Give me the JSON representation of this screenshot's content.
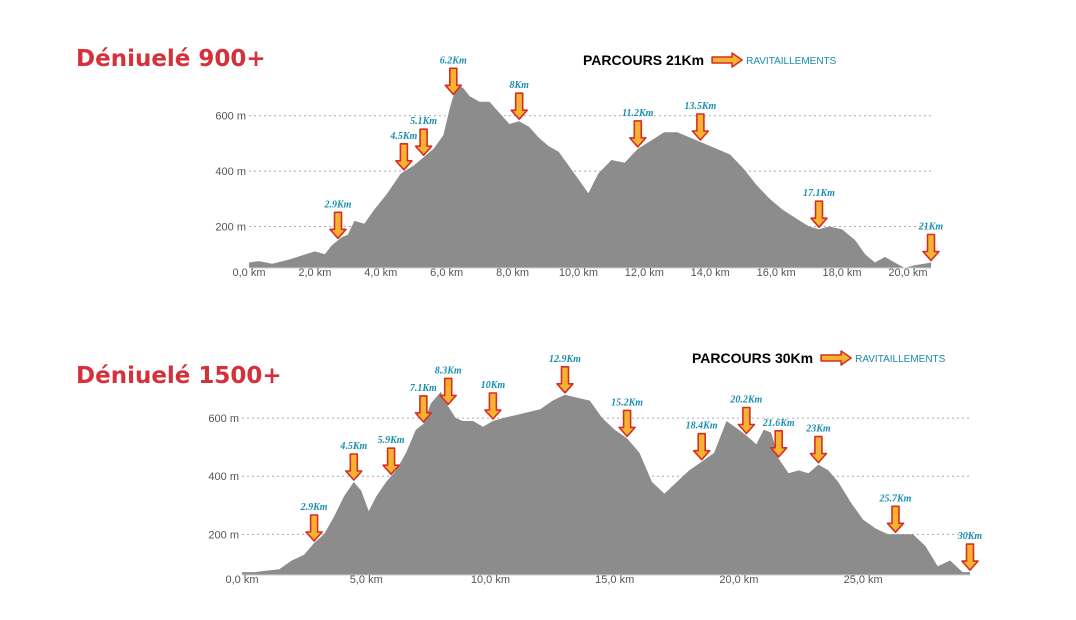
{
  "chart_data": [
    {
      "type": "area",
      "title": "Déniuelé 900+",
      "course": "PARCOURS 21Km",
      "legend_label": "RAVITAILLEMENTS",
      "xlim": [
        0,
        20.7
      ],
      "ylim": [
        50,
        700
      ],
      "yticks": [
        200,
        400,
        600
      ],
      "ytick_labels": [
        "200 m",
        "400 m",
        "600 m"
      ],
      "xticks": [
        0,
        2,
        4,
        6,
        8,
        10,
        12,
        14,
        16,
        18,
        20
      ],
      "xtick_labels": [
        "0,0 km",
        "2,0 km",
        "4,0 km",
        "6,0 km",
        "8,0 km",
        "10,0 km",
        "12,0 km",
        "14,0 km",
        "16,0 km",
        "18,0 km",
        "20,0 km"
      ],
      "grid": true,
      "x": [
        0,
        0.3,
        0.7,
        1.2,
        1.6,
        2.0,
        2.3,
        2.5,
        2.8,
        3.0,
        3.2,
        3.5,
        3.8,
        4.2,
        4.6,
        5.0,
        5.3,
        5.6,
        5.9,
        6.1,
        6.3,
        6.5,
        6.7,
        7.0,
        7.3,
        7.6,
        7.9,
        8.2,
        8.5,
        8.8,
        9.1,
        9.4,
        9.7,
        10.0,
        10.3,
        10.6,
        11.0,
        11.4,
        11.8,
        12.2,
        12.6,
        13.0,
        13.4,
        13.8,
        14.2,
        14.6,
        15.0,
        15.4,
        15.8,
        16.2,
        16.6,
        17.0,
        17.3,
        17.6,
        18.0,
        18.4,
        18.7,
        19.0,
        19.3,
        19.6,
        19.9,
        20.2,
        20.5,
        20.7
      ],
      "y": [
        70,
        75,
        65,
        80,
        95,
        110,
        100,
        130,
        160,
        170,
        220,
        210,
        260,
        320,
        390,
        420,
        450,
        480,
        530,
        630,
        710,
        700,
        670,
        650,
        650,
        610,
        570,
        580,
        560,
        520,
        490,
        470,
        420,
        370,
        320,
        390,
        440,
        430,
        480,
        510,
        540,
        540,
        520,
        500,
        480,
        460,
        410,
        350,
        300,
        260,
        230,
        200,
        190,
        200,
        190,
        150,
        100,
        70,
        90,
        70,
        50,
        60,
        65,
        70
      ],
      "markers": [
        {
          "label": "2.9Km",
          "x": 2.7
        },
        {
          "label": "4.5Km",
          "x": 4.7
        },
        {
          "label": "5.1Km",
          "x": 5.3
        },
        {
          "label": "6.2Km",
          "x": 6.2
        },
        {
          "label": "8Km",
          "x": 8.2
        },
        {
          "label": "11.2Km",
          "x": 11.8
        },
        {
          "label": "13.5Km",
          "x": 13.7
        },
        {
          "label": "17.1Km",
          "x": 17.3
        },
        {
          "label": "21Km",
          "x": 20.7
        }
      ]
    },
    {
      "type": "area",
      "title": "Déniuelé 1500+",
      "course": "PARCOURS 30Km",
      "legend_label": "RAVITAILLEMENTS",
      "xlim": [
        0,
        29.3
      ],
      "ylim": [
        60,
        700
      ],
      "yticks": [
        200,
        400,
        600
      ],
      "ytick_labels": [
        "200 m",
        "400 m",
        "600 m"
      ],
      "xticks": [
        0,
        5,
        10,
        15,
        20,
        25
      ],
      "xtick_labels": [
        "0,0 km",
        "5,0 km",
        "10,0 km",
        "15,0 km",
        "20,0 km",
        "25,0 km"
      ],
      "grid": true,
      "x": [
        0,
        0.5,
        1.0,
        1.5,
        2.0,
        2.5,
        2.9,
        3.3,
        3.7,
        4.1,
        4.5,
        4.8,
        5.1,
        5.4,
        5.8,
        6.2,
        6.6,
        7.0,
        7.3,
        7.6,
        8.0,
        8.3,
        8.6,
        8.9,
        9.3,
        9.7,
        10.1,
        10.5,
        11.0,
        11.5,
        12.0,
        12.5,
        13.0,
        13.5,
        14.0,
        14.5,
        15.0,
        15.5,
        16.0,
        16.5,
        17.0,
        17.5,
        18.0,
        18.5,
        19.0,
        19.5,
        20.0,
        20.3,
        20.7,
        21.0,
        21.3,
        21.6,
        22.0,
        22.4,
        22.8,
        23.2,
        23.6,
        24.0,
        24.5,
        25.0,
        25.5,
        26.0,
        26.5,
        27.0,
        27.5,
        28.0,
        28.5,
        29.0,
        29.3
      ],
      "y": [
        70,
        70,
        75,
        80,
        110,
        130,
        170,
        200,
        260,
        330,
        380,
        350,
        280,
        330,
        380,
        420,
        480,
        560,
        580,
        650,
        690,
        640,
        600,
        590,
        590,
        570,
        590,
        600,
        610,
        620,
        630,
        660,
        680,
        670,
        660,
        600,
        560,
        530,
        480,
        380,
        340,
        380,
        420,
        450,
        480,
        590,
        560,
        540,
        510,
        560,
        550,
        460,
        410,
        420,
        410,
        440,
        420,
        380,
        310,
        250,
        220,
        200,
        200,
        200,
        160,
        90,
        110,
        70,
        70
      ],
      "markers": [
        {
          "label": "2.9Km",
          "x": 2.9
        },
        {
          "label": "4.5Km",
          "x": 4.5
        },
        {
          "label": "5.9Km",
          "x": 6.0
        },
        {
          "label": "7.1Km",
          "x": 7.3
        },
        {
          "label": "8.3Km",
          "x": 8.3
        },
        {
          "label": "10Km",
          "x": 10.1
        },
        {
          "label": "12.9Km",
          "x": 13.0
        },
        {
          "label": "15.2Km",
          "x": 15.5
        },
        {
          "label": "18.4Km",
          "x": 18.5
        },
        {
          "label": "20.2Km",
          "x": 20.3
        },
        {
          "label": "21.6Km",
          "x": 21.6
        },
        {
          "label": "23Km",
          "x": 23.2
        },
        {
          "label": "25.7Km",
          "x": 26.3
        },
        {
          "label": "30Km",
          "x": 29.3
        }
      ]
    }
  ]
}
